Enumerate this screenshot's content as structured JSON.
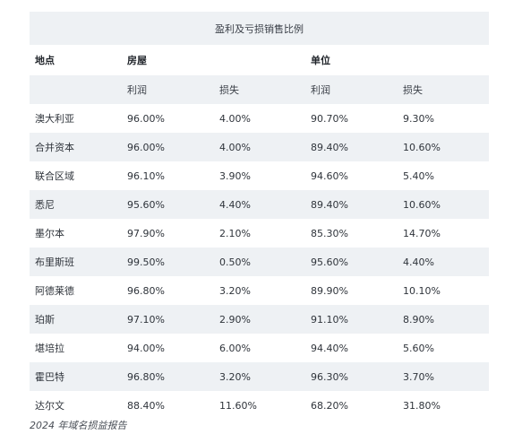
{
  "table": {
    "caption": "盈利及亏损销售比例",
    "headers": {
      "location": "地点",
      "group_houses": "房屋",
      "group_units": "单位",
      "profit": "利润",
      "loss": "损失"
    },
    "rows": [
      {
        "location": "澳大利亚",
        "house_profit": "96.00%",
        "house_loss": "4.00%",
        "unit_profit": "90.70%",
        "unit_loss": "9.30%"
      },
      {
        "location": "合并资本",
        "house_profit": "96.00%",
        "house_loss": "4.00%",
        "unit_profit": "89.40%",
        "unit_loss": "10.60%"
      },
      {
        "location": "联合区域",
        "house_profit": "96.10%",
        "house_loss": "3.90%",
        "unit_profit": "94.60%",
        "unit_loss": "5.40%"
      },
      {
        "location": "悉尼",
        "house_profit": "95.60%",
        "house_loss": "4.40%",
        "unit_profit": "89.40%",
        "unit_loss": "10.60%"
      },
      {
        "location": "墨尔本",
        "house_profit": "97.90%",
        "house_loss": "2.10%",
        "unit_profit": "85.30%",
        "unit_loss": "14.70%"
      },
      {
        "location": "布里斯班",
        "house_profit": "99.50%",
        "house_loss": "0.50%",
        "unit_profit": "95.60%",
        "unit_loss": "4.40%"
      },
      {
        "location": "阿德莱德",
        "house_profit": "96.80%",
        "house_loss": "3.20%",
        "unit_profit": "89.90%",
        "unit_loss": "10.10%"
      },
      {
        "location": "珀斯",
        "house_profit": "97.10%",
        "house_loss": "2.90%",
        "unit_profit": "91.10%",
        "unit_loss": "8.90%"
      },
      {
        "location": "堪培拉",
        "house_profit": "94.00%",
        "house_loss": "6.00%",
        "unit_profit": "94.40%",
        "unit_loss": "5.60%"
      },
      {
        "location": "霍巴特",
        "house_profit": "96.80%",
        "house_loss": "3.20%",
        "unit_profit": "96.30%",
        "unit_loss": "3.70%"
      },
      {
        "location": "达尔文",
        "house_profit": "88.40%",
        "house_loss": "11.60%",
        "unit_profit": "68.20%",
        "unit_loss": "31.80%"
      }
    ]
  },
  "footnote": "2024 年域名损益报告",
  "colors": {
    "stripe": "#eef1f4",
    "text": "#2b2f36"
  }
}
